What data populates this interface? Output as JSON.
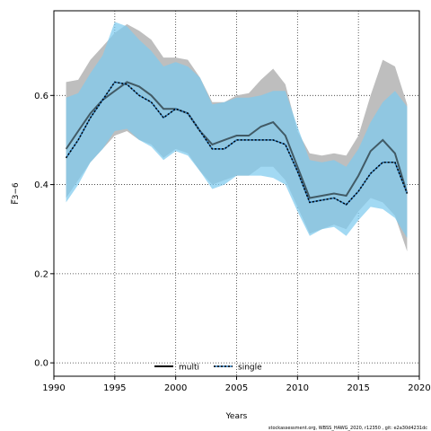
{
  "chart_data": {
    "type": "line",
    "xlabel": "Years",
    "ylabel": "F̅3−6",
    "xlim": [
      1990,
      2020
    ],
    "ylim": [
      -0.03,
      0.79
    ],
    "xticks": [
      1990,
      1995,
      2000,
      2005,
      2010,
      2015,
      2020
    ],
    "yticks": [
      0.0,
      0.2,
      0.4,
      0.6
    ],
    "ytick_labels": [
      "0.0",
      "0.2",
      "0.4",
      "0.6"
    ],
    "grid": true,
    "legend_position": "bottom-center",
    "x": [
      1991,
      1992,
      1993,
      1994,
      1995,
      1996,
      1997,
      1998,
      1999,
      2000,
      2001,
      2002,
      2003,
      2004,
      2005,
      2006,
      2007,
      2008,
      2009,
      2010,
      2011,
      2012,
      2013,
      2014,
      2015,
      2016,
      2017,
      2018,
      2019
    ],
    "series": [
      {
        "name": "multi",
        "color": "#000000",
        "band_color": "#bebebe",
        "values": [
          0.48,
          0.52,
          0.56,
          0.59,
          0.61,
          0.63,
          0.62,
          0.6,
          0.57,
          0.57,
          0.56,
          0.52,
          0.49,
          0.5,
          0.51,
          0.51,
          0.53,
          0.54,
          0.51,
          0.44,
          0.37,
          0.375,
          0.38,
          0.375,
          0.42,
          0.475,
          0.5,
          0.47,
          0.38
        ],
        "lower": [
          0.37,
          0.41,
          0.45,
          0.48,
          0.51,
          0.52,
          0.5,
          0.49,
          0.46,
          0.48,
          0.47,
          0.43,
          0.4,
          0.41,
          0.42,
          0.42,
          0.44,
          0.44,
          0.41,
          0.35,
          0.29,
          0.3,
          0.31,
          0.3,
          0.34,
          0.37,
          0.36,
          0.33,
          0.25
        ],
        "upper": [
          0.63,
          0.635,
          0.68,
          0.71,
          0.74,
          0.76,
          0.745,
          0.725,
          0.685,
          0.685,
          0.68,
          0.64,
          0.585,
          0.585,
          0.6,
          0.605,
          0.635,
          0.66,
          0.625,
          0.52,
          0.47,
          0.465,
          0.47,
          0.465,
          0.51,
          0.6,
          0.68,
          0.665,
          0.58
        ]
      },
      {
        "name": "single",
        "color": "#2a7bbf",
        "band_color": "#7ecbef",
        "values": [
          0.46,
          0.5,
          0.55,
          0.59,
          0.63,
          0.625,
          0.6,
          0.585,
          0.55,
          0.57,
          0.56,
          0.52,
          0.48,
          0.48,
          0.5,
          0.5,
          0.5,
          0.5,
          0.49,
          0.43,
          0.36,
          0.365,
          0.37,
          0.355,
          0.385,
          0.425,
          0.45,
          0.45,
          0.38
        ],
        "lower": [
          0.36,
          0.4,
          0.45,
          0.48,
          0.52,
          0.525,
          0.5,
          0.485,
          0.455,
          0.475,
          0.465,
          0.43,
          0.39,
          0.4,
          0.42,
          0.42,
          0.42,
          0.415,
          0.4,
          0.34,
          0.285,
          0.3,
          0.305,
          0.285,
          0.32,
          0.35,
          0.345,
          0.325,
          0.28
        ],
        "upper": [
          0.595,
          0.605,
          0.65,
          0.69,
          0.765,
          0.755,
          0.725,
          0.7,
          0.665,
          0.675,
          0.665,
          0.64,
          0.58,
          0.585,
          0.595,
          0.595,
          0.6,
          0.61,
          0.61,
          0.53,
          0.455,
          0.45,
          0.455,
          0.44,
          0.48,
          0.54,
          0.585,
          0.61,
          0.575
        ]
      }
    ]
  },
  "footer": "stockassessment.org, WBSS_HAWG_2020, r12350 , git: e2a30d4231dc"
}
